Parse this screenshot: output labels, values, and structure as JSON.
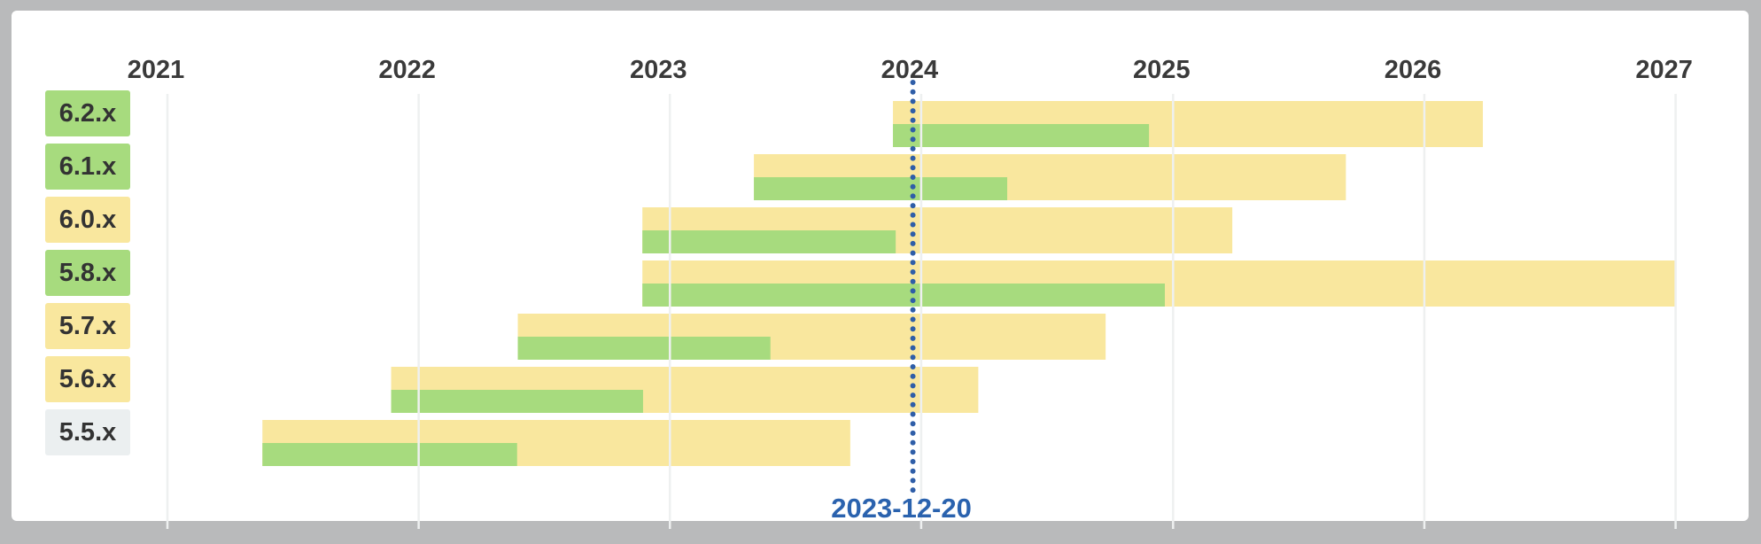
{
  "chart_data": {
    "type": "gantt",
    "title": "",
    "x_axis": {
      "tick_labels": [
        "2021",
        "2022",
        "2023",
        "2024",
        "2025",
        "2026",
        "2027"
      ],
      "range": [
        "2021-01-01",
        "2027-01-01"
      ],
      "grid": true
    },
    "today_marker": {
      "date": "2023-12-20",
      "label": "2023-12-20"
    },
    "rows": [
      {
        "version": "6.2.x",
        "label_status": "active",
        "release": "2023-11-21",
        "active_support_until": "2024-11-27",
        "security_support_until": "2026-03-27"
      },
      {
        "version": "6.1.x",
        "label_status": "active",
        "release": "2023-05-03",
        "active_support_until": "2024-05-05",
        "security_support_until": "2025-09-09"
      },
      {
        "version": "6.0.x",
        "label_status": "security",
        "release": "2022-11-22",
        "active_support_until": "2023-11-25",
        "security_support_until": "2025-03-28"
      },
      {
        "version": "5.8.x",
        "label_status": "active",
        "release": "2022-11-22",
        "active_support_until": "2024-12-20",
        "security_support_until": "2027-01-01"
      },
      {
        "version": "5.7.x",
        "label_status": "security",
        "release": "2022-05-25",
        "active_support_until": "2023-05-27",
        "security_support_until": "2024-09-25"
      },
      {
        "version": "5.6.x",
        "label_status": "security",
        "release": "2021-11-22",
        "active_support_until": "2022-11-23",
        "security_support_until": "2024-03-24"
      },
      {
        "version": "5.5.x",
        "label_status": "eol",
        "release": "2021-05-19",
        "active_support_until": "2022-05-24",
        "security_support_until": "2023-09-20"
      }
    ],
    "colors": {
      "active_bar": "#a7db7e",
      "security_bar": "#f9e79e",
      "label_active_bg": "#a7db7e",
      "label_security_bg": "#f9e79e",
      "label_eol_bg": "#ebeff0",
      "today_line": "#2f5ea8",
      "today_text": "#2a62ae",
      "gridline": "#eef0f0",
      "axis_text": "#3a3a3a"
    },
    "legend_position": "none"
  }
}
